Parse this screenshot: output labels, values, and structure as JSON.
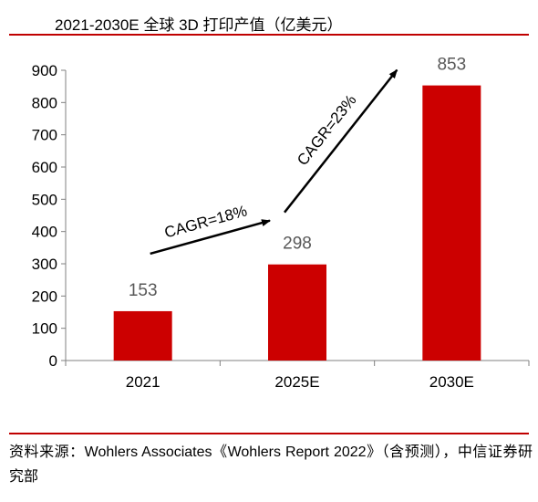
{
  "title": "2021-2030E 全球 3D 打印产值（亿美元）",
  "source": "资料来源：Wohlers Associates《Wohlers Report 2022》（含预测），中信证券研究部",
  "colors": {
    "bar": "#cc0000",
    "accent_rule": "#c00000",
    "data_label": "#595959",
    "axis": "#808080"
  },
  "chart_data": {
    "type": "bar",
    "categories": [
      "2021",
      "2025E",
      "2030E"
    ],
    "values": [
      153,
      298,
      853
    ],
    "ylim": [
      0,
      900
    ],
    "yticks": [
      0,
      100,
      200,
      300,
      400,
      500,
      600,
      700,
      800,
      900
    ],
    "grid": false,
    "legend": "none",
    "annotations": [
      {
        "text": "CAGR=18%",
        "from": "2021",
        "to": "2025E"
      },
      {
        "text": "CAGR=23%",
        "from": "2025E",
        "to": "2030E"
      }
    ]
  }
}
